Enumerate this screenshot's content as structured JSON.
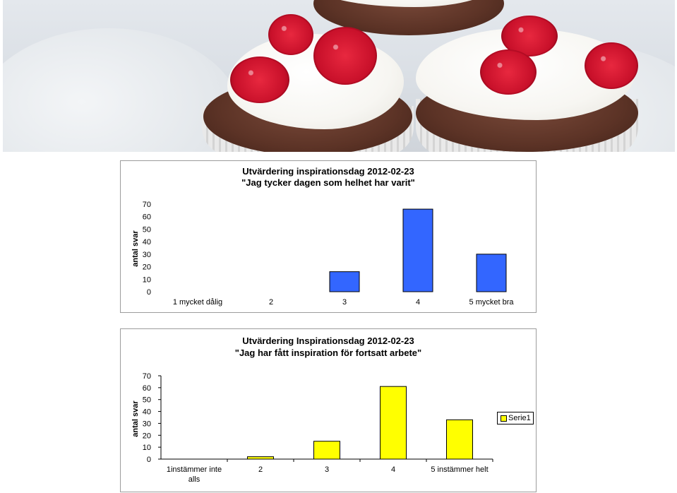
{
  "hero": {
    "icon": "cupcakes-photo"
  },
  "charts": [
    {
      "title_line1": "Utvärdering inspirationsdag 2012-02-23",
      "title_line2": "\"Jag tycker dagen som helhet har varit\"",
      "ylabel": "antal svar",
      "yticks": [
        "0",
        "10",
        "20",
        "30",
        "40",
        "50",
        "60",
        "70"
      ],
      "color": "#3366ff"
    },
    {
      "title_line1": "Utvärdering Inspirationsdag 2012-02-23",
      "title_line2": "\"Jag har fått inspiration för fortsatt arbete\"",
      "ylabel": "antal svar",
      "yticks": [
        "0",
        "10",
        "20",
        "30",
        "40",
        "50",
        "60",
        "70"
      ],
      "legend": "Serie1",
      "color": "#ffff00"
    }
  ],
  "chart_data": [
    {
      "type": "bar",
      "title": "Utvärdering inspirationsdag 2012-02-23 \"Jag tycker dagen som helhet har varit\"",
      "categories": [
        "1 mycket dålig",
        "2",
        "3",
        "4",
        "5 mycket bra"
      ],
      "values": [
        0,
        0,
        16,
        66,
        30
      ],
      "xlabel": "",
      "ylabel": "antal svar",
      "ylim": [
        0,
        70
      ],
      "grid": false,
      "legend": "none"
    },
    {
      "type": "bar",
      "title": "Utvärdering Inspirationsdag 2012-02-23 \"Jag har fått inspiration för fortsatt arbete\"",
      "categories": [
        "1instämmer inte alls",
        "2",
        "3",
        "4",
        "5 instämmer helt"
      ],
      "series": [
        {
          "name": "Serie1",
          "values": [
            0,
            2,
            15,
            61,
            33
          ]
        }
      ],
      "xlabel": "",
      "ylabel": "antal svar",
      "ylim": [
        0,
        70
      ],
      "grid": false,
      "legend": "right"
    }
  ]
}
